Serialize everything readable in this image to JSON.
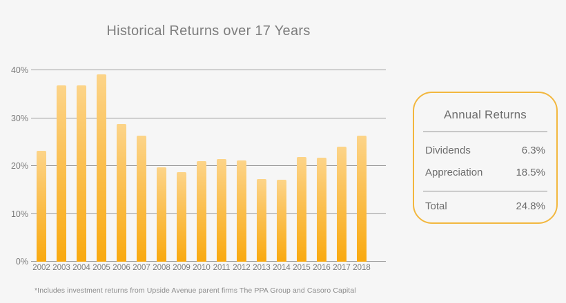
{
  "title": "Historical Returns over 17 Years",
  "chart_data": {
    "type": "bar",
    "title": "Historical Returns over 17 Years",
    "categories": [
      "2002",
      "2003",
      "2004",
      "2005",
      "2006",
      "2007",
      "2008",
      "2009",
      "2010",
      "2011",
      "2012",
      "2013",
      "2014",
      "2015",
      "2016",
      "2017",
      "2018"
    ],
    "values": [
      23.2,
      36.9,
      36.9,
      39.2,
      28.8,
      26.4,
      19.7,
      18.7,
      21.0,
      21.4,
      21.2,
      17.2,
      17.1,
      21.9,
      21.8,
      24.1,
      26.4
    ],
    "xlabel": "",
    "ylabel": "",
    "ylim": [
      0,
      40
    ],
    "ytick_labels": [
      "0%",
      "10%",
      "20%",
      "30%",
      "40%"
    ],
    "ytick_values": [
      0,
      10,
      20,
      30,
      40
    ],
    "grid": true,
    "legend": "none",
    "bar_color_top": "#fcd489",
    "bar_color_bottom": "#f9a90f",
    "gridline_color": "#9a9a9a"
  },
  "panel": {
    "title": "Annual Returns",
    "rows": [
      {
        "label": "Dividends",
        "value": "6.3%"
      },
      {
        "label": "Appreciation",
        "value": "18.5%"
      }
    ],
    "total_row": {
      "label": "Total",
      "value": "24.8%"
    },
    "border_color": "#f2b73e"
  },
  "footnote": "*Includes investment returns from Upside Avenue parent firms The PPA Group and Casoro Capital"
}
